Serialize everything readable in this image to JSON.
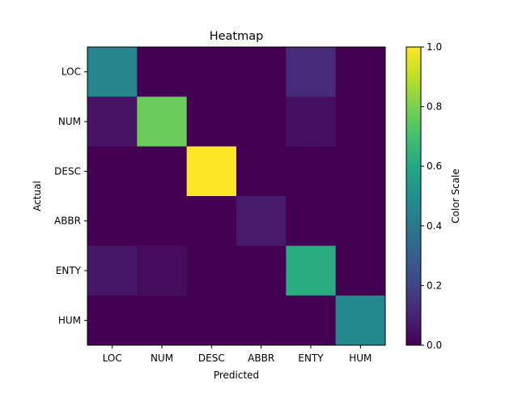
{
  "chart_data": {
    "type": "heatmap",
    "title": "Heatmap",
    "xlabel": "Predicted",
    "ylabel": "Actual",
    "x_categories": [
      "LOC",
      "NUM",
      "DESC",
      "ABBR",
      "ENTY",
      "HUM"
    ],
    "y_categories": [
      "LOC",
      "NUM",
      "DESC",
      "ABBR",
      "ENTY",
      "HUM"
    ],
    "values": [
      [
        0.45,
        0.0,
        0.0,
        0.0,
        0.12,
        0.0
      ],
      [
        0.05,
        0.77,
        0.0,
        0.0,
        0.04,
        0.0
      ],
      [
        0.0,
        0.0,
        1.0,
        0.0,
        0.0,
        0.0
      ],
      [
        0.0,
        0.0,
        0.0,
        0.07,
        0.0,
        0.0
      ],
      [
        0.06,
        0.03,
        0.0,
        0.0,
        0.62,
        0.0
      ],
      [
        0.0,
        0.0,
        0.0,
        0.0,
        0.0,
        0.47
      ]
    ],
    "colormap": "viridis",
    "colorbar": {
      "label": "Color Scale",
      "range": [
        0.0,
        1.0
      ],
      "ticks": [
        "0.0",
        "0.2",
        "0.4",
        "0.6",
        "0.8",
        "1.0"
      ]
    },
    "grid": false
  }
}
